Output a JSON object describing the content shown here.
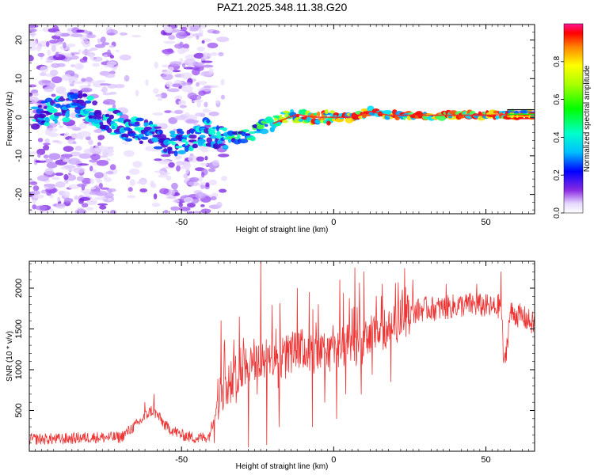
{
  "title": "PAZ1.2025.348.11.38.G20",
  "chart_data": [
    {
      "type": "heatmap",
      "xlabel": "Height of straight line (km)",
      "ylabel": "Frequency (Hz)",
      "xlim": [
        -100,
        66
      ],
      "ylim": [
        -25,
        24
      ],
      "xticks": [
        -50,
        0,
        50
      ],
      "yticks": [
        -20,
        -10,
        0,
        10,
        20
      ],
      "colorbar": {
        "label": "Normalized spectral amplitude",
        "range": [
          0,
          1
        ],
        "ticks": [
          "0.0",
          "0.2",
          "0.4",
          "0.6",
          "0.8"
        ]
      },
      "ridge": {
        "x": [
          -97,
          -90,
          -83,
          -78,
          -72,
          -66,
          -60,
          -54,
          -48,
          -42,
          -36,
          -30,
          -24,
          -18,
          -12,
          -6,
          0,
          6,
          12,
          18,
          26,
          34,
          42,
          50,
          56,
          66
        ],
        "y": [
          0.5,
          2.0,
          3.5,
          1.0,
          -1.5,
          -3.0,
          -4.5,
          -6.0,
          -6.5,
          -4.0,
          -5.5,
          -5.5,
          -3.0,
          -1.0,
          0.7,
          0.0,
          0.0,
          0.0,
          1.5,
          0.5,
          0.5,
          0.5,
          0.5,
          0.5,
          0.7,
          0.7
        ]
      }
    },
    {
      "type": "line",
      "xlabel": "Height of straight line (km)",
      "ylabel": "SNR (10 * v/v)",
      "xlim": [
        -100,
        66
      ],
      "ylim": [
        0,
        2330
      ],
      "xticks": [
        -50,
        0,
        50
      ],
      "yticks": [
        500,
        1000,
        1500,
        2000
      ],
      "color": "#ee3333",
      "series": [
        {
          "name": "SNR",
          "x": [
            -100,
            -90,
            -80,
            -70,
            -64,
            -60,
            -58,
            -55,
            -50,
            -45,
            -41,
            -38,
            -36,
            -33,
            -31,
            -28,
            -25,
            -20,
            -15,
            -10,
            -5,
            -2,
            0,
            2,
            5,
            8,
            10,
            15,
            20,
            25,
            30,
            35,
            40,
            45,
            50,
            53,
            55,
            56,
            58,
            62,
            66
          ],
          "y": [
            150,
            150,
            170,
            170,
            350,
            500,
            450,
            300,
            200,
            160,
            180,
            600,
            800,
            900,
            1000,
            1100,
            1100,
            1150,
            1200,
            1250,
            1150,
            1250,
            1350,
            1250,
            1300,
            1250,
            1350,
            1450,
            1550,
            1700,
            1750,
            1750,
            1780,
            1800,
            1780,
            1750,
            1800,
            1000,
            1700,
            1650,
            1550
          ]
        }
      ],
      "peaks": {
        "x": [
          -62,
          -59,
          -37,
          -31,
          -24,
          -19,
          -12,
          -8,
          -5,
          2,
          6,
          7,
          10,
          14,
          16,
          26,
          37,
          47,
          55
        ],
        "y": [
          600,
          700,
          1600,
          1650,
          2330,
          1500,
          2000,
          1950,
          1800,
          2100,
          1750,
          2250,
          2200,
          1900,
          2050,
          2100,
          2050,
          2050,
          2200
        ]
      },
      "dips": {
        "x": [
          -28,
          -22,
          -18,
          -7,
          -3,
          1,
          4,
          9
        ],
        "y": [
          50,
          80,
          300,
          300,
          600,
          400,
          700,
          700
        ]
      }
    }
  ]
}
